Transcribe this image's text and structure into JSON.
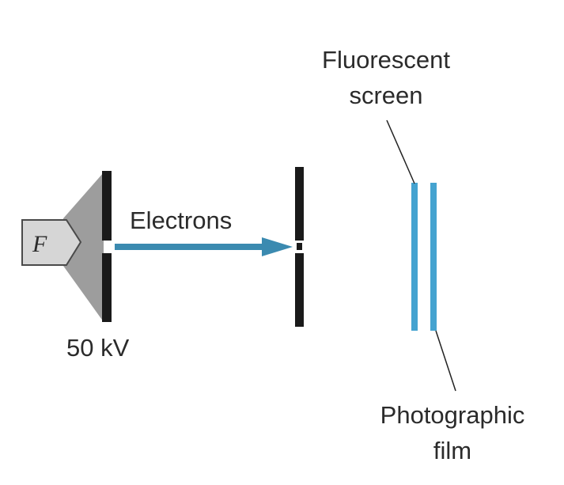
{
  "labels": {
    "filament": "F",
    "electrons": "Electrons",
    "voltage": "50 kV",
    "fluorescent_line1": "Fluorescent",
    "fluorescent_line2": "screen",
    "photographic_line1": "Photographic",
    "photographic_line2": "film"
  },
  "colors": {
    "beam": "#3b8ab0",
    "screen": "#45a3d0",
    "plate": "#1a1a1a",
    "cone": "#9d9d9d",
    "filament_fill": "#d6d6d6"
  }
}
